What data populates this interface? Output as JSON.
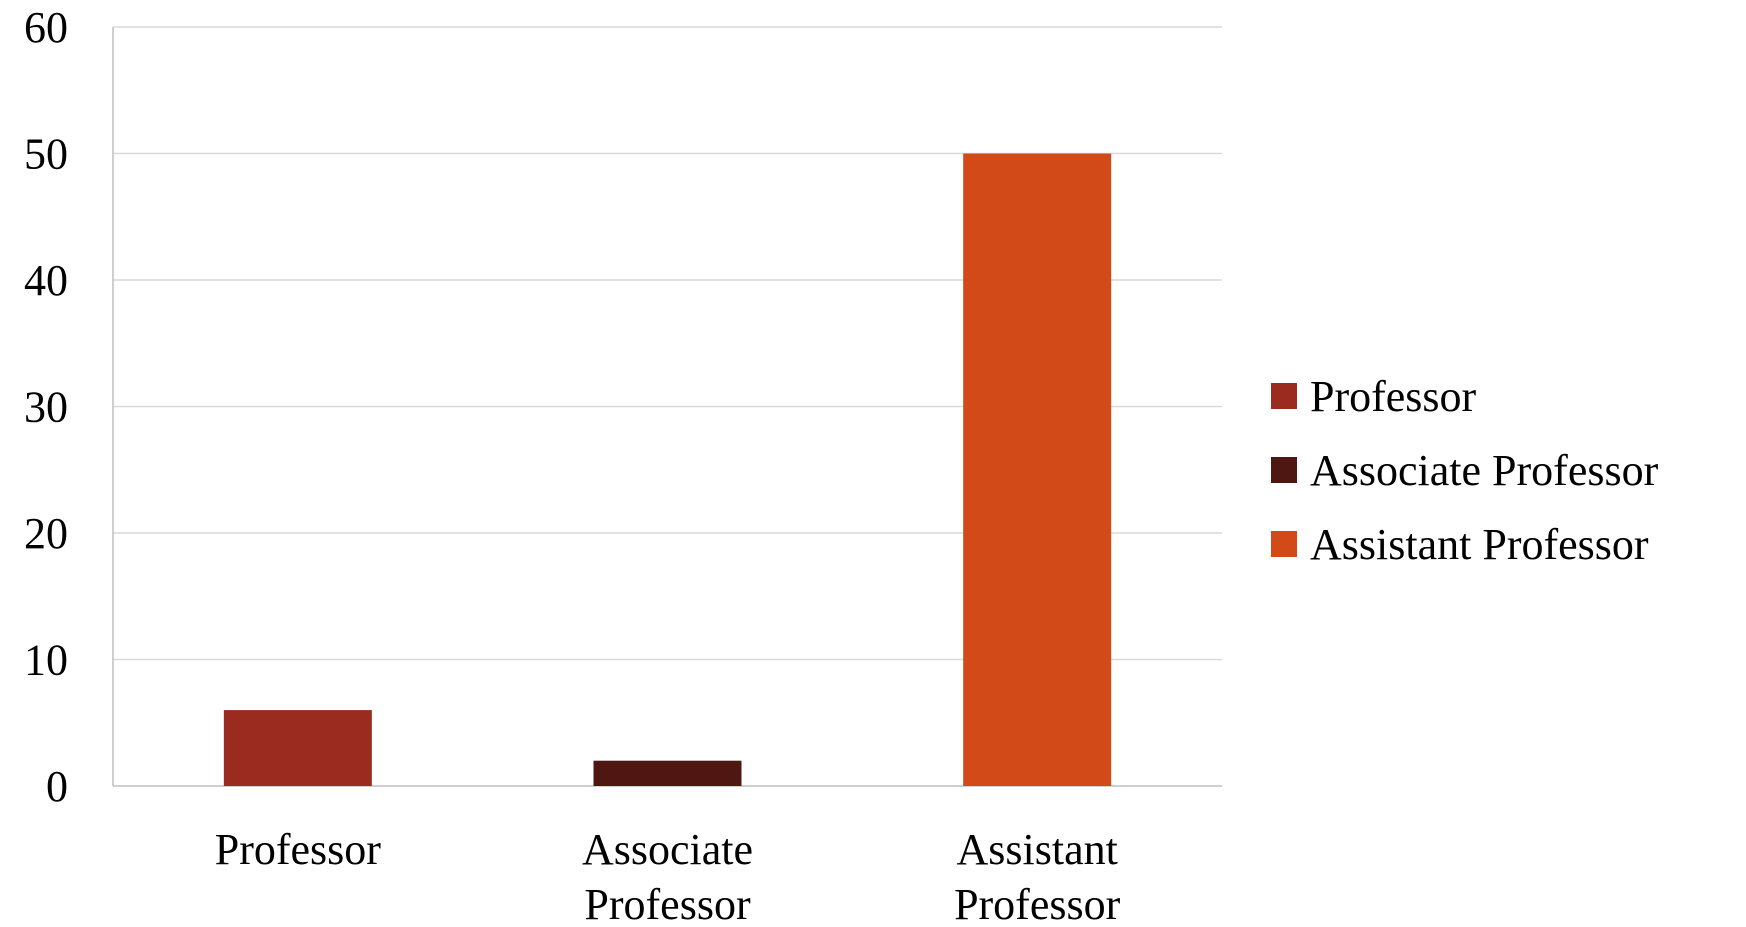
{
  "chart_data": {
    "type": "bar",
    "title": "",
    "xlabel": "",
    "ylabel": "",
    "ylim": [
      0,
      60
    ],
    "yticks": [
      0,
      10,
      20,
      30,
      40,
      50,
      60
    ],
    "grid": true,
    "legend_position": "right",
    "categories": [
      "Professor",
      "Associate Professor",
      "Assistant Professor"
    ],
    "category_label_lines": [
      [
        "Professor"
      ],
      [
        "Associate",
        "Professor"
      ],
      [
        "Assistant",
        "Professor"
      ]
    ],
    "series": [
      {
        "name": "Professor",
        "category": "Professor",
        "value": 6,
        "color": "#9B2A1F"
      },
      {
        "name": "Associate Professor",
        "category": "Associate Professor",
        "value": 2,
        "color": "#4E1712"
      },
      {
        "name": "Assistant Professor",
        "category": "Assistant Professor",
        "value": 50,
        "color": "#D14A17"
      }
    ],
    "colors": {
      "grid": "#D9D9D9",
      "axis": "#BFBFBF",
      "text": "#000000"
    }
  }
}
